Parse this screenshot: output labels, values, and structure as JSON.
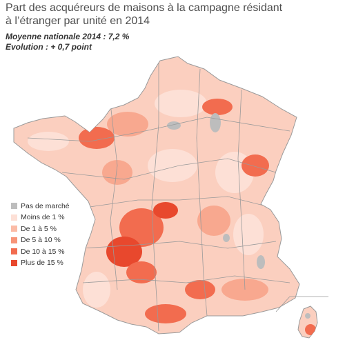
{
  "title": {
    "line1": "Part des acquéreurs de maisons à la campagne résidant",
    "line2": "à l’étranger par unité en 2014"
  },
  "subtitle": {
    "line1": "Moyenne nationale 2014 : 7,2 %",
    "line2": "Evolution : + 0,7 point"
  },
  "legend": [
    {
      "label": "Pas de marché",
      "color": "#bdbdbd"
    },
    {
      "label": "Moins de 1 %",
      "color": "#fde0d6"
    },
    {
      "label": "De 1 à 5 %",
      "color": "#fbbba6"
    },
    {
      "label": "De 5 à 10 %",
      "color": "#f79478"
    },
    {
      "label": "De 10 à 15 %",
      "color": "#f26c4f"
    },
    {
      "label": "Plus de 15 %",
      "color": "#e8482d"
    }
  ],
  "map_colors": {
    "base": "#fbcfbf",
    "border": "#9a9a9a"
  }
}
